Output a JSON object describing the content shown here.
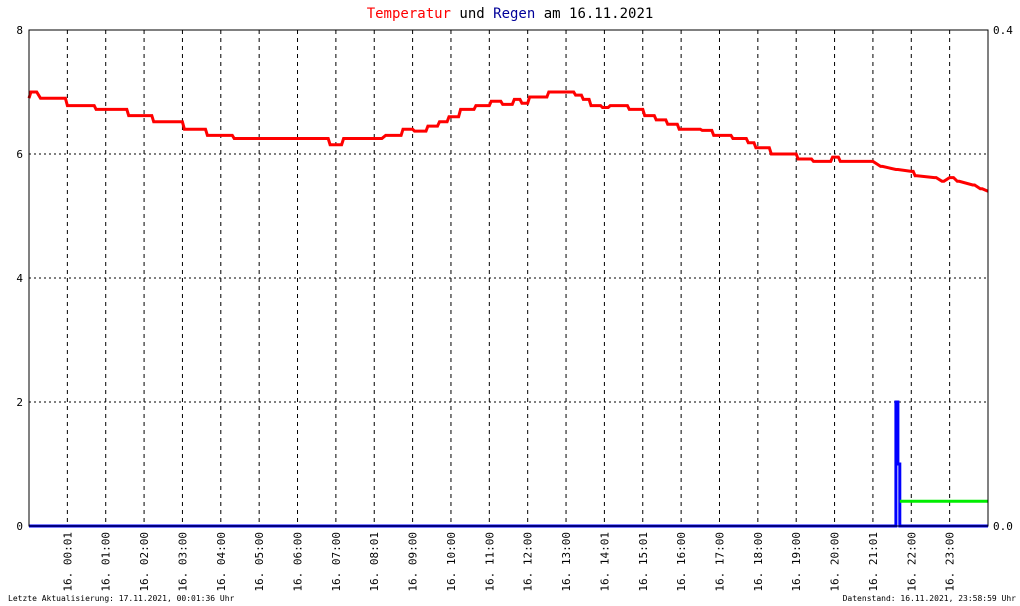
{
  "chart_data": {
    "type": "line",
    "title_parts": [
      {
        "text": "Temperatur",
        "color": "#ff0000"
      },
      {
        "text": " und ",
        "color": "#000000"
      },
      {
        "text": "Regen",
        "color": "#000099"
      },
      {
        "text": " am 16.11.2021",
        "color": "#000000"
      }
    ],
    "x_unit": "hours",
    "xlim": [
      0,
      24
    ],
    "ylim_left": [
      0,
      8
    ],
    "ylim_right": [
      0,
      0.4
    ],
    "y_ticks_left": [
      "0",
      "2",
      "4",
      "6",
      "8"
    ],
    "y_ticks_right": [
      "0.0",
      "0.4"
    ],
    "grid": true,
    "x_ticks": [
      {
        "x": 1.0,
        "label": "16. 00:01"
      },
      {
        "x": 2.0,
        "label": "16. 01:00"
      },
      {
        "x": 3.0,
        "label": "16. 02:00"
      },
      {
        "x": 4.0,
        "label": "16. 03:00"
      },
      {
        "x": 5.0,
        "label": "16. 04:00"
      },
      {
        "x": 6.0,
        "label": "16. 05:00"
      },
      {
        "x": 7.0,
        "label": "16. 06:00"
      },
      {
        "x": 8.0,
        "label": "16. 07:00"
      },
      {
        "x": 9.0,
        "label": "16. 08:01"
      },
      {
        "x": 10.0,
        "label": "16. 09:00"
      },
      {
        "x": 11.0,
        "label": "16. 10:00"
      },
      {
        "x": 12.0,
        "label": "16. 11:00"
      },
      {
        "x": 13.0,
        "label": "16. 12:00"
      },
      {
        "x": 14.0,
        "label": "16. 13:00"
      },
      {
        "x": 15.0,
        "label": "16. 14:01"
      },
      {
        "x": 16.0,
        "label": "16. 15:01"
      },
      {
        "x": 17.0,
        "label": "16. 16:00"
      },
      {
        "x": 18.0,
        "label": "16. 17:00"
      },
      {
        "x": 19.0,
        "label": "16. 18:00"
      },
      {
        "x": 20.0,
        "label": "16. 19:00"
      },
      {
        "x": 21.0,
        "label": "16. 20:00"
      },
      {
        "x": 22.0,
        "label": "16. 21:01"
      },
      {
        "x": 23.0,
        "label": "16. 22:00"
      },
      {
        "x": 24.0,
        "label": "16. 23:00"
      }
    ],
    "series": [
      {
        "name": "Temperatur",
        "color": "#ff0000",
        "axis": "left",
        "x": [
          0.0,
          0.05,
          0.2,
          0.3,
          0.95,
          1.0,
          1.7,
          1.75,
          2.55,
          2.6,
          3.2,
          3.25,
          4.0,
          4.05,
          4.6,
          4.65,
          5.3,
          5.35,
          6.4,
          7.5,
          7.8,
          7.85,
          8.15,
          8.2,
          8.3,
          9.0,
          9.2,
          9.3,
          9.7,
          9.75,
          10.0,
          10.05,
          10.35,
          10.4,
          10.65,
          10.7,
          10.9,
          10.95,
          11.2,
          11.25,
          11.6,
          11.65,
          12.0,
          12.05,
          12.3,
          12.35,
          12.6,
          12.65,
          12.8,
          12.85,
          13.0,
          13.05,
          13.5,
          13.55,
          14.2,
          14.25,
          14.4,
          14.45,
          14.6,
          14.65,
          14.9,
          14.95,
          15.1,
          15.15,
          15.6,
          15.65,
          16.0,
          16.05,
          16.3,
          16.35,
          16.6,
          16.65,
          16.9,
          16.95,
          17.5,
          17.55,
          17.8,
          17.85,
          18.3,
          18.35,
          18.7,
          18.75,
          18.9,
          18.95,
          19.3,
          19.35,
          20.0,
          20.05,
          20.4,
          20.45,
          20.9,
          20.95,
          21.1,
          21.15,
          22.0,
          22.2,
          22.25,
          22.6,
          22.65,
          23.0,
          23.05,
          23.1,
          23.15,
          23.6,
          23.65,
          23.8,
          23.85,
          24.0,
          24.1,
          24.2,
          24.25,
          24.6,
          24.65,
          24.8,
          24.85,
          25.0
        ],
        "y": [
          6.9,
          7.0,
          7.0,
          6.9,
          6.9,
          6.78,
          6.78,
          6.72,
          6.72,
          6.62,
          6.62,
          6.52,
          6.52,
          6.4,
          6.4,
          6.3,
          6.3,
          6.25,
          6.25,
          6.25,
          6.25,
          6.15,
          6.15,
          6.25,
          6.25,
          6.25,
          6.25,
          6.3,
          6.3,
          6.4,
          6.4,
          6.37,
          6.37,
          6.45,
          6.45,
          6.52,
          6.52,
          6.6,
          6.6,
          6.72,
          6.72,
          6.78,
          6.78,
          6.85,
          6.85,
          6.8,
          6.8,
          6.88,
          6.88,
          6.82,
          6.82,
          6.92,
          6.92,
          7.0,
          7.0,
          6.95,
          6.95,
          6.88,
          6.88,
          6.78,
          6.78,
          6.75,
          6.75,
          6.78,
          6.78,
          6.72,
          6.72,
          6.62,
          6.62,
          6.55,
          6.55,
          6.48,
          6.48,
          6.4,
          6.4,
          6.38,
          6.38,
          6.3,
          6.3,
          6.25,
          6.25,
          6.18,
          6.18,
          6.1,
          6.1,
          6.0,
          6.0,
          5.92,
          5.92,
          5.88,
          5.88,
          5.95,
          5.95,
          5.88,
          5.88,
          5.8,
          5.8,
          5.75,
          5.75,
          5.72,
          5.72,
          5.65,
          5.65,
          5.62,
          5.62,
          5.56,
          5.56,
          5.62,
          5.62,
          5.56,
          5.56,
          5.5,
          5.5,
          5.44,
          5.44,
          5.4
        ]
      },
      {
        "name": "Regen",
        "color": "#0000ff",
        "axis": "right",
        "x": [
          0.0,
          22.6,
          22.6,
          22.65,
          22.65,
          22.7,
          22.7,
          25.0
        ],
        "y": [
          0.0,
          0.0,
          0.1,
          0.1,
          0.05,
          0.05,
          0.0,
          0.0
        ]
      },
      {
        "color": "#00ee00",
        "axis": "right",
        "x": [
          22.7,
          25.0
        ],
        "y": [
          0.02,
          0.02
        ]
      }
    ]
  },
  "footer": {
    "left": "Letzte Aktualisierung: 17.11.2021, 00:01:36 Uhr",
    "right": "Datenstand: 16.11.2021, 23:58:59 Uhr"
  }
}
